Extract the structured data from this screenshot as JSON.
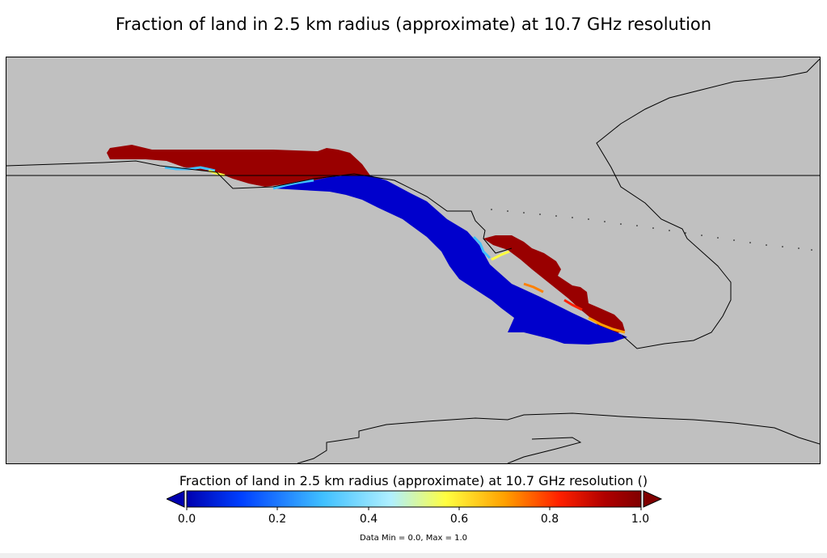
{
  "title": "Fraction of land in 2.5 km radius (approximate) at 10.7 GHz resolution",
  "colorbar": {
    "title": "Fraction of land in 2.5 km radius (approximate) at 10.7 GHz resolution ()",
    "min": 0.0,
    "max": 1.0,
    "ticks": [
      "0.0",
      "0.2",
      "0.4",
      "0.6",
      "0.8",
      "1.0"
    ],
    "extend": "both",
    "colors": [
      "#0000b0",
      "#0040ff",
      "#40c0ff",
      "#b0f0ff",
      "#ffff40",
      "#ffa000",
      "#ff2000",
      "#b00000",
      "#800000"
    ]
  },
  "data_range": "Data Min = 0.0, Max = 1.0",
  "map": {
    "background_color": "#c0c0c0",
    "land_color": "#8b0000",
    "water_color": "#0000c8",
    "coastline_color": "#000000"
  }
}
